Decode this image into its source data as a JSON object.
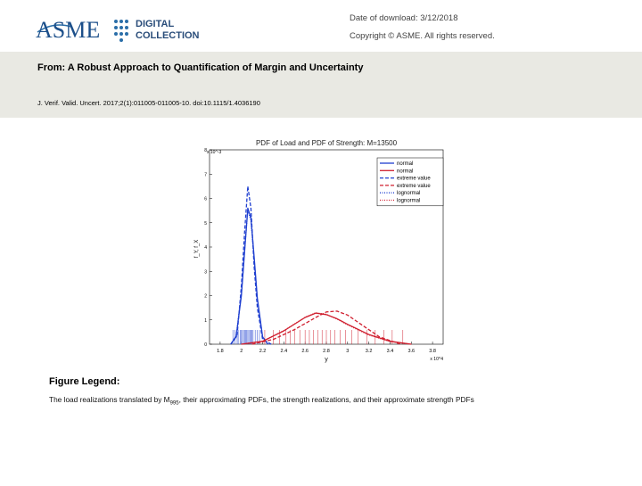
{
  "header": {
    "logo_asme": "ASME",
    "logo_line1": "DIGITAL",
    "logo_line2": "COLLECTION",
    "date_of_download": "Date of download:  3/12/2018",
    "copyright": "Copyright © ASME. All rights reserved."
  },
  "article": {
    "title": "From: A Robust Approach to Quantification of Margin and Uncertainty",
    "citation": "J. Verif. Valid. Uncert. 2017;2(1):011005-011005-10.  doi:10.1115/1.4036190"
  },
  "figure_legend": {
    "heading": "Figure Legend:",
    "caption_pre": "The load realizations translated by M",
    "caption_sub": "995",
    "caption_post": ", their approximating PDFs, the strength realizations, and their approximate strength PDFs"
  },
  "chart_data": {
    "type": "line",
    "title": "PDF of Load and PDF of Strength: M=13500",
    "xlabel": "y",
    "ylabel": "f_Y, f_X",
    "x_multiplier": "x 10^4",
    "y_multiplier": "x 10^-3",
    "xlim": [
      1.7,
      3.9
    ],
    "ylim": [
      0,
      8
    ],
    "x_ticks": [
      "1.8",
      "2",
      "2.2",
      "2.4",
      "2.6",
      "2.8",
      "3",
      "3.2",
      "3.4",
      "3.6",
      "3.8"
    ],
    "y_ticks": [
      "0",
      "1",
      "2",
      "3",
      "4",
      "5",
      "6",
      "7",
      "8"
    ],
    "legend": [
      "normal",
      "normal",
      "extreme value",
      "extreme value",
      "lognormal",
      "lognormal"
    ],
    "legend_position": "top-right",
    "colors": {
      "load": "#1f3fd0",
      "strength": "#d01f2f"
    },
    "series": [
      {
        "name": "normal",
        "group": "load",
        "style": "solid",
        "x": [
          1.9,
          1.95,
          2.0,
          2.03,
          2.06,
          2.09,
          2.12,
          2.15,
          2.2,
          2.25
        ],
        "y": [
          0.0,
          0.3,
          2.0,
          3.8,
          5.6,
          5.2,
          3.6,
          1.9,
          0.3,
          0.0
        ]
      },
      {
        "name": "extreme value",
        "group": "load",
        "style": "dashed",
        "x": [
          1.9,
          1.96,
          2.0,
          2.03,
          2.06,
          2.09,
          2.12,
          2.15,
          2.2,
          2.28
        ],
        "y": [
          0.0,
          0.4,
          2.4,
          4.6,
          6.5,
          5.6,
          3.2,
          1.5,
          0.2,
          0.0
        ]
      },
      {
        "name": "lognormal",
        "group": "load",
        "style": "dotted",
        "x": [
          1.9,
          1.95,
          2.0,
          2.03,
          2.06,
          2.09,
          2.12,
          2.15,
          2.2,
          2.25
        ],
        "y": [
          0.0,
          0.3,
          2.1,
          3.9,
          5.5,
          5.1,
          3.5,
          1.8,
          0.3,
          0.0
        ]
      },
      {
        "name": "normal",
        "group": "strength",
        "style": "solid",
        "x": [
          2.0,
          2.2,
          2.4,
          2.6,
          2.7,
          2.8,
          2.9,
          3.0,
          3.2,
          3.4,
          3.6
        ],
        "y": [
          0.0,
          0.12,
          0.55,
          1.1,
          1.28,
          1.22,
          1.05,
          0.82,
          0.4,
          0.12,
          0.0
        ]
      },
      {
        "name": "extreme value",
        "group": "strength",
        "style": "dashed",
        "x": [
          2.1,
          2.3,
          2.5,
          2.7,
          2.8,
          2.9,
          3.0,
          3.1,
          3.3,
          3.5
        ],
        "y": [
          0.0,
          0.2,
          0.6,
          1.1,
          1.33,
          1.36,
          1.2,
          0.9,
          0.3,
          0.0
        ]
      },
      {
        "name": "lognormal",
        "group": "strength",
        "style": "dotted",
        "x": [
          2.0,
          2.2,
          2.4,
          2.6,
          2.7,
          2.8,
          2.9,
          3.0,
          3.2,
          3.4,
          3.6
        ],
        "y": [
          0.0,
          0.12,
          0.56,
          1.11,
          1.29,
          1.23,
          1.04,
          0.8,
          0.38,
          0.11,
          0.0
        ]
      }
    ],
    "load_realizations": [
      1.92,
      1.94,
      1.96,
      1.97,
      1.99,
      2.0,
      2.01,
      2.02,
      2.03,
      2.04,
      2.05,
      2.06,
      2.07,
      2.08,
      2.09,
      2.1,
      2.11,
      2.13,
      2.15,
      2.17
    ],
    "strength_realizations": [
      2.22,
      2.3,
      2.36,
      2.42,
      2.46,
      2.5,
      2.55,
      2.6,
      2.64,
      2.68,
      2.72,
      2.76,
      2.8,
      2.84,
      2.88,
      2.93,
      2.98,
      3.04,
      3.1,
      3.18,
      3.26,
      3.34,
      3.42,
      3.52
    ]
  }
}
